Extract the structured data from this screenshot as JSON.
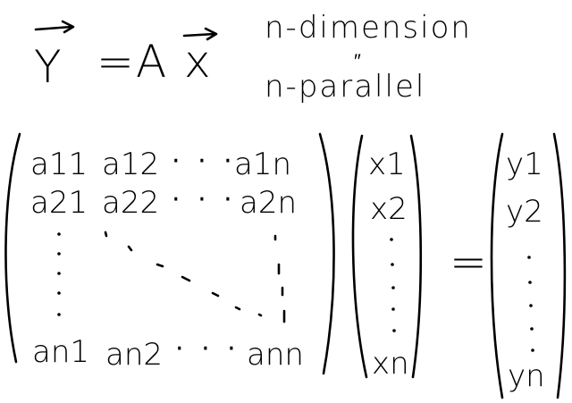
{
  "equation": {
    "lhs": "Y",
    "equals": "=",
    "matrix_symbol": "A",
    "vector_symbol": "x"
  },
  "notes": {
    "line1": "n-dimension",
    "ditto": "″",
    "line2": "n-parallel"
  },
  "matrix": {
    "row1": [
      "a11",
      "a12",
      "· · ·",
      "a1n"
    ],
    "row2": [
      "a21",
      "a22",
      "· · ·",
      "a2n"
    ],
    "row_n": [
      "an1",
      "an2",
      "· · ·",
      "ann"
    ]
  },
  "vector_x": [
    "x1",
    "x2",
    "xn"
  ],
  "equals_sign": "=",
  "vector_y": [
    "y1",
    "y2",
    "yn"
  ]
}
